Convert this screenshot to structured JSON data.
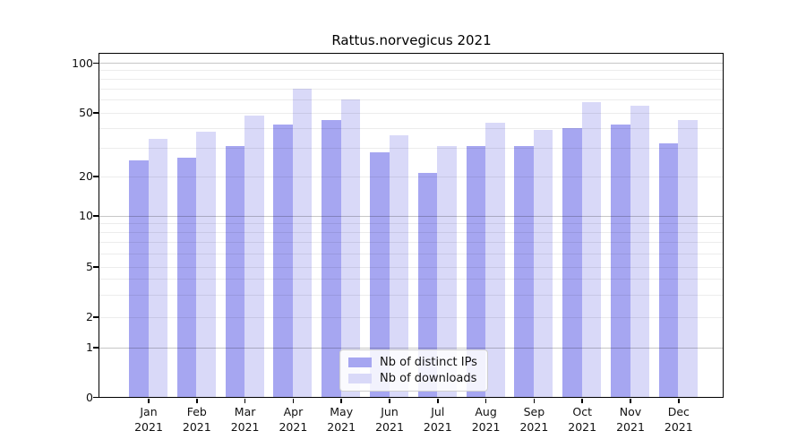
{
  "chart_data": {
    "type": "bar",
    "title": "Rattus.norvegicus 2021",
    "xlabel": "",
    "ylabel": "",
    "year": "2021",
    "categories": [
      "Jan",
      "Feb",
      "Mar",
      "Apr",
      "May",
      "Jun",
      "Jul",
      "Aug",
      "Sep",
      "Oct",
      "Nov",
      "Dec"
    ],
    "series": [
      {
        "name": "Nb of distinct IPs",
        "color": "#a6a6f1",
        "values": [
          25,
          26,
          31,
          42,
          45,
          28,
          21,
          31,
          31,
          40,
          42,
          32
        ]
      },
      {
        "name": "Nb of downloads",
        "color": "#d9d9f8",
        "values": [
          34,
          38,
          48,
          70,
          60,
          36,
          31,
          43,
          39,
          58,
          55,
          45
        ]
      }
    ],
    "y_scale": "symlog",
    "y_ticks": [
      0,
      1,
      2,
      5,
      10,
      20,
      50,
      100
    ],
    "ylim": [
      0,
      115
    ],
    "grid": {
      "on": true,
      "major_lines": [
        1,
        10,
        100
      ],
      "minor_lines": [
        2,
        3,
        4,
        5,
        6,
        7,
        8,
        9,
        20,
        30,
        40,
        50,
        60,
        70,
        80,
        90
      ]
    },
    "legend": {
      "position": "lower center"
    }
  }
}
